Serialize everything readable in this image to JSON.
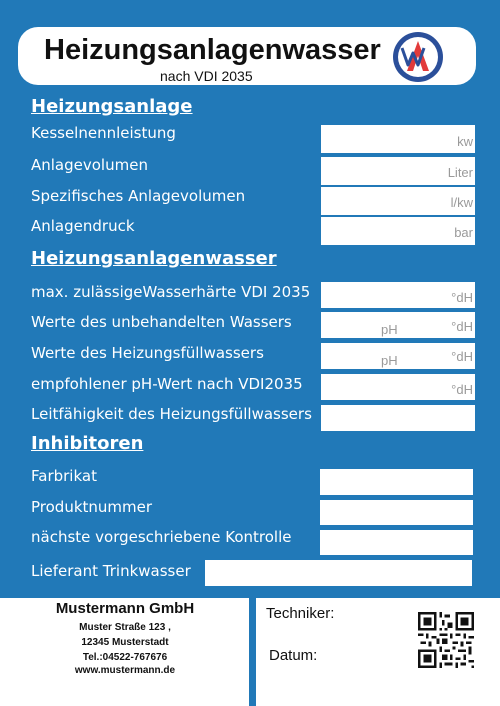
{
  "header": {
    "title": "Heizungsanlagenwasser",
    "subtitle": "nach VDI 2035"
  },
  "heizungsanlage": {
    "heading": "Heizungsanlage",
    "rows": [
      {
        "label": "Kesselnennleistung",
        "unit": "kw"
      },
      {
        "label": "Anlagevolumen",
        "unit": "Liter"
      },
      {
        "label": "Spezifisches Anlagevolumen",
        "unit": "l/kw"
      },
      {
        "label": "Anlagendruck",
        "unit": "bar"
      }
    ]
  },
  "wasser": {
    "heading": "Heizungsanlagenwasser",
    "rows": [
      {
        "label": "max. zulässigeWasserhärte VDI 2035",
        "unit": "°dH",
        "ph": ""
      },
      {
        "label": "Werte des unbehandelten Wassers",
        "unit": "°dH",
        "ph": "pH"
      },
      {
        "label": "Werte des Heizungsfüllwassers",
        "unit": "°dH",
        "ph": "pH"
      },
      {
        "label": "empfohlener pH-Wert nach VDI2035",
        "unit": "°dH",
        "ph": ""
      },
      {
        "label": "Leitfähigkeit des Heizungsfüllwassers",
        "unit": "",
        "ph": ""
      }
    ]
  },
  "inhibitoren": {
    "heading": "Inhibitoren",
    "rows": [
      {
        "label": "Farbrikat"
      },
      {
        "label": "Produktnummer"
      },
      {
        "label": "nächste vorgeschriebene Kontrolle"
      },
      {
        "label": "Lieferant Trinkwasser"
      }
    ]
  },
  "company": {
    "name": "Mustermann GmbH",
    "street": "Muster Straße 123 ,",
    "city": "12345 Musterstadt",
    "phone": "Tel.:04522-767676",
    "web": "www.mustermann.de"
  },
  "signature": {
    "techniker": "Techniker:",
    "datum": "Datum:"
  },
  "colors": {
    "panel": "#2179b8",
    "logo_red": "#e23b3b",
    "logo_blue": "#2b4f9a"
  },
  "icons": {
    "logo": "wasser-logo-icon",
    "qr": "qr-code-icon"
  }
}
